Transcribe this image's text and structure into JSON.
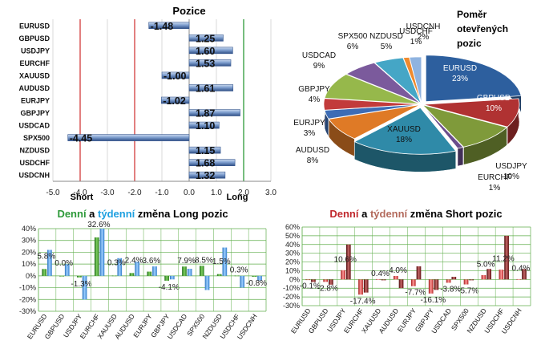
{
  "chart_data": [
    {
      "id": "positions",
      "type": "bar",
      "orientation": "horizontal",
      "title": "Pozice",
      "categories": [
        "EURUSD",
        "GBPUSD",
        "USDJPY",
        "EURCHF",
        "XAUUSD",
        "AUDUSD",
        "EURJPY",
        "GBPJPY",
        "USDCAD",
        "SPX500",
        "NZDUSD",
        "USDCHF",
        "USDCNH"
      ],
      "values": [
        -1.48,
        1.25,
        1.6,
        1.53,
        -1.0,
        1.61,
        -1.02,
        1.87,
        1.1,
        -4.45,
        1.15,
        1.68,
        1.32
      ],
      "value_labels": [
        "-1.48",
        "1.25",
        "1.60",
        "1.53",
        "-1.00",
        "1.61",
        "-1.02",
        "1.87",
        "1.10",
        "-4.45",
        "1.15",
        "1.68",
        "1.32"
      ],
      "xlim": [
        -5.0,
        3.0
      ],
      "ticks": [
        "-5.0",
        "-4.0",
        "-3.0",
        "-2.0",
        "-1.0",
        "0.0",
        "1.0",
        "2.0",
        "3.0"
      ],
      "short_label": "Short",
      "long_label": "Long",
      "reference_lines": [
        -4.0,
        -2.0,
        2.0
      ]
    },
    {
      "id": "open-positions-ratio",
      "type": "pie",
      "title_lines": [
        "Poměr",
        "otevřených",
        "pozic"
      ],
      "slices": [
        {
          "name": "EURUSD",
          "value": 23,
          "label": "23%",
          "color": "#2d5f9e"
        },
        {
          "name": "GBPUSD",
          "value": 10,
          "label": "10%",
          "color": "#b03232"
        },
        {
          "name": "USDJPY",
          "value": 10,
          "label": "10%",
          "color": "#7f9a3a"
        },
        {
          "name": "EURCHF",
          "value": 1,
          "label": "1%",
          "color": "#6a4d8c"
        },
        {
          "name": "XAUUSD",
          "value": 18,
          "label": "18%",
          "color": "#2f8aa8"
        },
        {
          "name": "AUDUSD",
          "value": 8,
          "label": "8%",
          "color": "#df7a26"
        },
        {
          "name": "EURJPY",
          "value": 3,
          "label": "3%",
          "color": "#3d6cb5"
        },
        {
          "name": "GBPJPY",
          "value": 4,
          "label": "4%",
          "color": "#c23b3b"
        },
        {
          "name": "USDCAD",
          "value": 9,
          "label": "9%",
          "color": "#96b84b"
        },
        {
          "name": "SPX500",
          "value": 6,
          "label": "6%",
          "color": "#7b5a9c"
        },
        {
          "name": "NZDUSD",
          "value": 5,
          "label": "5%",
          "color": "#45a6c6"
        },
        {
          "name": "USDCHF",
          "value": 1,
          "label": "1%",
          "color": "#f08a2e"
        },
        {
          "name": "USDCNH",
          "value": 2,
          "label": "2%",
          "color": "#8fb3e0"
        }
      ]
    },
    {
      "id": "long-change",
      "type": "bar",
      "title_parts": [
        {
          "text": "Denní",
          "color": "#2e9a3a"
        },
        {
          "text": " a ",
          "color": "#000000"
        },
        {
          "text": "týdenní",
          "color": "#1ea0e0"
        },
        {
          "text": " změna Long pozic",
          "color": "#000000"
        }
      ],
      "categories": [
        "EURUSD",
        "GBPUSD",
        "USDJPY",
        "EURCHF",
        "XAUUSD",
        "AUDUSD",
        "EURJPY",
        "GBPJPY",
        "USDCAD",
        "SPX500",
        "NZDUSD",
        "USDCHF",
        "USDCNH"
      ],
      "series": [
        {
          "name": "Denní",
          "color": "#3e9b2e",
          "values": [
            5.8,
            0.0,
            -1.3,
            32.6,
            0.3,
            2.4,
            3.6,
            -4.1,
            7.9,
            8.5,
            1.5,
            0.3,
            -0.8
          ]
        },
        {
          "name": "týdenní",
          "color": "#4aa3e8",
          "values": [
            22,
            10,
            -20,
            40,
            15,
            12,
            8,
            -3,
            6,
            -12,
            24,
            -10,
            -4
          ]
        }
      ],
      "value_labels": [
        "5.8%",
        "0.0%",
        "-1.3%",
        "32.6%",
        "0.3%",
        "2.4%",
        "3.6%",
        "-4.1%",
        "7.9%",
        "8.5%",
        "1.5%",
        "0.3%",
        "-0.8%"
      ],
      "ylim": [
        -30,
        40
      ],
      "ticks": [
        "-30%",
        "-20%",
        "-10%",
        "0%",
        "10%",
        "20%",
        "30%",
        "40%"
      ]
    },
    {
      "id": "short-change",
      "type": "bar",
      "title_parts": [
        {
          "text": "Denní",
          "color": "#c0282d"
        },
        {
          "text": " a ",
          "color": "#000000"
        },
        {
          "text": "týdenní",
          "color": "#b36a5c"
        },
        {
          "text": " změna Short pozic",
          "color": "#000000"
        }
      ],
      "categories": [
        "EURUSD",
        "GBPUSD",
        "USDJPY",
        "EURCHF",
        "XAUUSD",
        "AUDUSD",
        "EURJPY",
        "GBPJPY",
        "USDCAD",
        "SPX500",
        "NZDUSD",
        "USDCHF",
        "USDCNH"
      ],
      "series": [
        {
          "name": "Denní",
          "color": "#d62a2a",
          "values": [
            -0.1,
            -2.8,
            10.6,
            -17.4,
            0.4,
            4.0,
            -7.7,
            -16.1,
            -3.8,
            -5.7,
            5.0,
            11.2,
            0.4
          ]
        },
        {
          "name": "týdenní",
          "color": "#6e1414",
          "values": [
            -3,
            -6,
            40,
            -15,
            -1,
            -10,
            15,
            -12,
            3,
            -1,
            12,
            50,
            12
          ]
        }
      ],
      "value_labels": [
        "-0.1%",
        "-2.8%",
        "10.6%",
        "-17.4%",
        "0.4%",
        "4.0%",
        "-7.7%",
        "-16.1%",
        "-3.8%",
        "-5.7%",
        "5.0%",
        "11.2%",
        "0.4%"
      ],
      "ylim": [
        -30,
        60
      ],
      "ticks": [
        "-30%",
        "-20%",
        "-10%",
        "0%",
        "10%",
        "20%",
        "30%",
        "40%",
        "50%",
        "60%"
      ]
    }
  ]
}
